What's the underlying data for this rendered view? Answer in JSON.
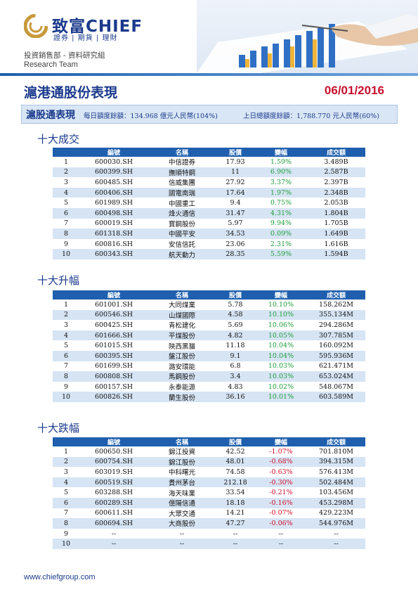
{
  "header": {
    "brand": "致富CHIEF",
    "brand_sub": "證券 | 期貨 | 理財",
    "department": "投資銷售部 - 資料研究組",
    "team": "Research Team",
    "colors": {
      "brand_blue": "#1b3a8c",
      "logo_gold": "#c89a3c",
      "accent_blue": "#1f5fae"
    }
  },
  "report": {
    "title": "滬港通股份表現",
    "date": "06/01/2016"
  },
  "quota": {
    "label": "滬股通表現",
    "daily": "每日額度餘額：134.968 億元人民幣(104%)",
    "total": "上日總額度餘額：1,788.770 元人民幣(60%)"
  },
  "columns": [
    "",
    "編號",
    "名稱",
    "股價",
    "變幅",
    "成交額"
  ],
  "sections": [
    {
      "title": "十大成交",
      "rows": [
        [
          "1",
          "600030.SH",
          "中信證券",
          "17.93",
          "1.59%",
          "3.489B"
        ],
        [
          "2",
          "600399.SH",
          "撫順特鋼",
          "11",
          "6.90%",
          "2.587B"
        ],
        [
          "3",
          "600485.SH",
          "信威集團",
          "27.92",
          "3.37%",
          "2.397B"
        ],
        [
          "4",
          "600406.SH",
          "國電南瑞",
          "17.64",
          "1.97%",
          "2.348B"
        ],
        [
          "5",
          "601989.SH",
          "中國重工",
          "9.4",
          "0.75%",
          "2.053B"
        ],
        [
          "6",
          "600498.SH",
          "烽火通信",
          "31.47",
          "4.31%",
          "1.804B"
        ],
        [
          "7",
          "600019.SH",
          "寶鋼股份",
          "5.97",
          "9.94%",
          "1.705B"
        ],
        [
          "8",
          "601318.SH",
          "中國平安",
          "34.53",
          "0.09%",
          "1.649B"
        ],
        [
          "9",
          "600816.SH",
          "安信信託",
          "23.06",
          "2.31%",
          "1.616B"
        ],
        [
          "10",
          "600343.SH",
          "航天動力",
          "28.35",
          "5.59%",
          "1.594B"
        ]
      ]
    },
    {
      "title": "十大升幅",
      "rows": [
        [
          "1",
          "601001.SH",
          "大同煤業",
          "5.78",
          "10.10%",
          "158.262M"
        ],
        [
          "2",
          "600546.SH",
          "山煤國際",
          "4.58",
          "10.10%",
          "355.134M"
        ],
        [
          "3",
          "600425.SH",
          "青松建化",
          "5.69",
          "10.06%",
          "294.286M"
        ],
        [
          "4",
          "601666.SH",
          "平煤股份",
          "4.82",
          "10.05%",
          "307.785M"
        ],
        [
          "5",
          "601015.SH",
          "陝西黑貓",
          "11.18",
          "10.04%",
          "160.092M"
        ],
        [
          "6",
          "600395.SH",
          "盤江股份",
          "9.1",
          "10.04%",
          "595.936M"
        ],
        [
          "7",
          "601699.SH",
          "潞安環能",
          "6.8",
          "10.03%",
          "621.471M"
        ],
        [
          "8",
          "600808.SH",
          "馬鋼股份",
          "3.4",
          "10.03%",
          "653.024M"
        ],
        [
          "9",
          "600157.SH",
          "永泰能源",
          "4.83",
          "10.02%",
          "548.067M"
        ],
        [
          "10",
          "600826.SH",
          "蘭生股份",
          "36.16",
          "10.01%",
          "603.589M"
        ]
      ]
    },
    {
      "title": "十大跌幅",
      "rows": [
        [
          "1",
          "600650.SH",
          "錦江投資",
          "42.52",
          "-1.07%",
          "701.810M"
        ],
        [
          "2",
          "600754.SH",
          "錦江股份",
          "48.01",
          "-0.68%",
          "394.315M"
        ],
        [
          "3",
          "603019.SH",
          "中科曙光",
          "74.58",
          "-0.63%",
          "576.413M"
        ],
        [
          "4",
          "600519.SH",
          "貴州茅台",
          "212.18",
          "-0.30%",
          "502.484M"
        ],
        [
          "5",
          "603288.SH",
          "海天味業",
          "33.54",
          "-0.21%",
          "103.456M"
        ],
        [
          "6",
          "600289.SH",
          "億陽信通",
          "18.18",
          "-0.16%",
          "453.298M"
        ],
        [
          "7",
          "600611.SH",
          "大眾交通",
          "14.21",
          "-0.07%",
          "429.223M"
        ],
        [
          "8",
          "600694.SH",
          "大商股份",
          "47.27",
          "-0.06%",
          "544.976M"
        ],
        [
          "9",
          "--",
          "--",
          "--",
          "--",
          "--"
        ],
        [
          "10",
          "--",
          "--",
          "--",
          "--",
          "--"
        ]
      ]
    }
  ],
  "footer": {
    "url": "www.chiefgroup.com"
  }
}
